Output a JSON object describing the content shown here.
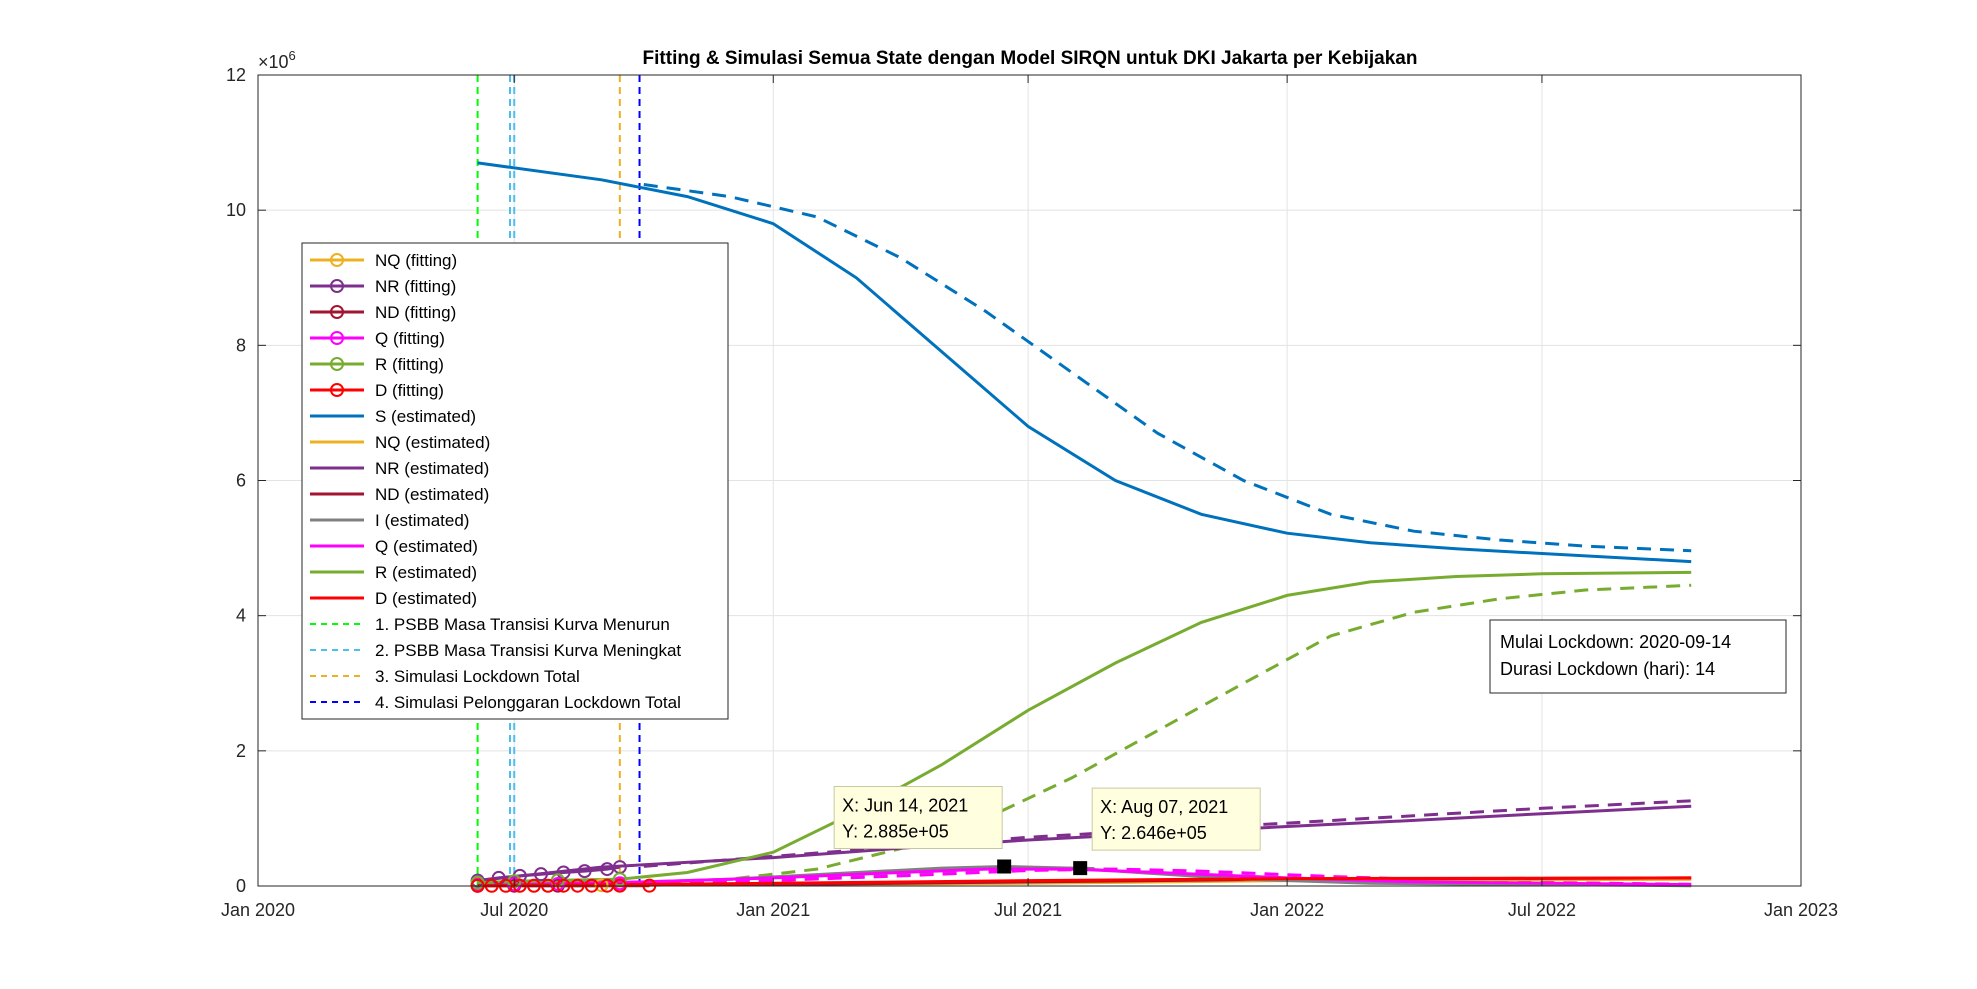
{
  "chart_data": {
    "type": "line",
    "title": "Fitting & Simulasi Semua State dengan Model SIRQN untuk DKI Jakarta per Kebijakan",
    "xlabel": "",
    "ylabel": "",
    "y_exponent_label": "×10",
    "y_exponent_power": "6",
    "xlim": [
      "2020-01-01",
      "2023-01-01"
    ],
    "ylim": [
      0,
      12000000
    ],
    "x_ticks": [
      {
        "date": "2020-01-01",
        "label": "Jan 2020"
      },
      {
        "date": "2020-07-01",
        "label": "Jul 2020"
      },
      {
        "date": "2021-01-01",
        "label": "Jan 2021"
      },
      {
        "date": "2021-07-01",
        "label": "Jul 2021"
      },
      {
        "date": "2022-01-01",
        "label": "Jan 2022"
      },
      {
        "date": "2022-07-01",
        "label": "Jul 2022"
      },
      {
        "date": "2023-01-01",
        "label": "Jan 2023"
      }
    ],
    "y_ticks": [
      {
        "value": 0,
        "label": "0"
      },
      {
        "value": 2000000,
        "label": "2"
      },
      {
        "value": 4000000,
        "label": "4"
      },
      {
        "value": 6000000,
        "label": "6"
      },
      {
        "value": 8000000,
        "label": "8"
      },
      {
        "value": 10000000,
        "label": "10"
      },
      {
        "value": 12000000,
        "label": "12"
      }
    ],
    "grid": true,
    "legend_position": "upper-left",
    "series": [
      {
        "name": "NQ (fitting)",
        "color": "#EDB120",
        "style": "solid",
        "marker": "circle",
        "x": [
          "2020-06-05",
          "2020-07-01",
          "2020-08-01",
          "2020-09-01",
          "2020-09-14"
        ],
        "y": [
          5000,
          8000,
          10000,
          12000,
          13000
        ]
      },
      {
        "name": "NR (fitting)",
        "color": "#7E2F8E",
        "style": "solid",
        "marker": "circle",
        "x": [
          "2020-06-05",
          "2020-06-20",
          "2020-07-05",
          "2020-07-20",
          "2020-08-05",
          "2020-08-20",
          "2020-09-05",
          "2020-09-14"
        ],
        "y": [
          80000,
          120000,
          150000,
          175000,
          200000,
          220000,
          250000,
          280000
        ]
      },
      {
        "name": "ND (fitting)",
        "color": "#A2142F",
        "style": "solid",
        "marker": "circle",
        "x": [
          "2020-06-05",
          "2020-07-01",
          "2020-08-01",
          "2020-09-14"
        ],
        "y": [
          3000,
          4000,
          5000,
          6000
        ]
      },
      {
        "name": "Q (fitting)",
        "color": "#FF00FF",
        "style": "solid",
        "marker": "circle",
        "x": [
          "2020-06-05",
          "2020-07-01",
          "2020-08-01",
          "2020-09-14"
        ],
        "y": [
          20000,
          25000,
          30000,
          40000
        ]
      },
      {
        "name": "R (fitting)",
        "color": "#77AC30",
        "style": "solid",
        "marker": "circle",
        "x": [
          "2020-06-05",
          "2020-07-01",
          "2020-08-01",
          "2020-09-14"
        ],
        "y": [
          50000,
          70000,
          85000,
          100000
        ]
      },
      {
        "name": "D (fitting)",
        "color": "#FF0000",
        "style": "solid",
        "marker": "circle",
        "x": [
          "2020-06-05",
          "2020-06-15",
          "2020-06-25",
          "2020-07-05",
          "2020-07-15",
          "2020-07-25",
          "2020-08-05",
          "2020-08-15",
          "2020-08-25",
          "2020-09-05",
          "2020-09-14",
          "2020-10-05"
        ],
        "y": [
          3000,
          3000,
          3000,
          3500,
          3500,
          3500,
          4000,
          4000,
          4000,
          4500,
          5000,
          5000
        ]
      },
      {
        "name": "S (estimated)",
        "color": "#0072BD",
        "style": "solid",
        "marker": "",
        "x": [
          "2020-06-05",
          "2020-09-01",
          "2020-11-01",
          "2021-01-01",
          "2021-03-01",
          "2021-05-01",
          "2021-07-01",
          "2021-09-01",
          "2021-11-01",
          "2022-01-01",
          "2022-03-01",
          "2022-05-01",
          "2022-07-01",
          "2022-09-01",
          "2022-10-15"
        ],
        "y": [
          10700000,
          10450000,
          10200000,
          9800000,
          9000000,
          7900000,
          6800000,
          6000000,
          5500000,
          5220000,
          5080000,
          4990000,
          4920000,
          4850000,
          4800000
        ]
      },
      {
        "name": "NQ (estimated)",
        "color": "#EDB120",
        "style": "solid",
        "marker": "",
        "x": [
          "2020-06-05",
          "2021-01-01",
          "2021-07-01",
          "2022-01-01",
          "2022-10-15"
        ],
        "y": [
          5000,
          20000,
          40000,
          80000,
          100000
        ]
      },
      {
        "name": "NR (estimated)",
        "color": "#7E2F8E",
        "style": "solid",
        "marker": "",
        "x": [
          "2020-06-05",
          "2020-09-01",
          "2021-01-01",
          "2021-04-01",
          "2021-07-01",
          "2021-10-01",
          "2022-01-01",
          "2022-04-01",
          "2022-07-01",
          "2022-10-15"
        ],
        "y": [
          80000,
          280000,
          420000,
          560000,
          680000,
          780000,
          880000,
          970000,
          1070000,
          1180000
        ]
      },
      {
        "name": "ND (estimated)",
        "color": "#A2142F",
        "style": "solid",
        "marker": "",
        "x": [
          "2020-06-05",
          "2021-01-01",
          "2021-07-01",
          "2022-01-01",
          "2022-10-15"
        ],
        "y": [
          3000,
          20000,
          60000,
          100000,
          120000
        ]
      },
      {
        "name": "I (estimated)",
        "color": "#808080",
        "style": "solid",
        "marker": "",
        "x": [
          "2020-06-05",
          "2020-09-01",
          "2020-12-01",
          "2021-03-01",
          "2021-05-01",
          "2021-06-14",
          "2021-08-01",
          "2021-10-01",
          "2021-12-01",
          "2022-03-01",
          "2022-10-15"
        ],
        "y": [
          10000,
          40000,
          100000,
          200000,
          265000,
          288500,
          264600,
          180000,
          100000,
          40000,
          5000
        ]
      },
      {
        "name": "Q (estimated)",
        "color": "#FF00FF",
        "style": "solid",
        "marker": "",
        "x": [
          "2020-06-05",
          "2020-10-01",
          "2021-01-01",
          "2021-04-01",
          "2021-06-01",
          "2021-08-01",
          "2021-10-01",
          "2022-01-01",
          "2022-04-01",
          "2022-10-15"
        ],
        "y": [
          20000,
          60000,
          120000,
          200000,
          250000,
          250000,
          200000,
          120000,
          60000,
          20000
        ]
      },
      {
        "name": "R (estimated)",
        "color": "#77AC30",
        "style": "solid",
        "marker": "",
        "x": [
          "2020-06-05",
          "2020-09-14",
          "2020-11-01",
          "2021-01-01",
          "2021-03-01",
          "2021-05-01",
          "2021-07-01",
          "2021-09-01",
          "2021-11-01",
          "2022-01-01",
          "2022-03-01",
          "2022-05-01",
          "2022-07-01",
          "2022-10-15"
        ],
        "y": [
          50000,
          100000,
          200000,
          500000,
          1100000,
          1800000,
          2600000,
          3300000,
          3900000,
          4300000,
          4500000,
          4580000,
          4620000,
          4640000
        ]
      },
      {
        "name": "D (estimated)",
        "color": "#FF0000",
        "style": "solid",
        "marker": "",
        "x": [
          "2020-06-05",
          "2021-01-01",
          "2021-07-01",
          "2022-01-01",
          "2022-10-15"
        ],
        "y": [
          3000,
          40000,
          80000,
          110000,
          120000
        ]
      }
    ],
    "simulation_series": [
      {
        "of": "S",
        "color": "#0072BD",
        "style": "dashed",
        "x": [
          "2020-10-01",
          "2020-12-01",
          "2021-02-01",
          "2021-04-01",
          "2021-06-01",
          "2021-08-01",
          "2021-10-01",
          "2021-12-01",
          "2022-02-01",
          "2022-04-01",
          "2022-06-01",
          "2022-08-01",
          "2022-10-15"
        ],
        "y": [
          10380000,
          10200000,
          9900000,
          9300000,
          8500000,
          7600000,
          6700000,
          6000000,
          5500000,
          5250000,
          5120000,
          5030000,
          4960000
        ]
      },
      {
        "of": "R",
        "color": "#77AC30",
        "style": "dashed",
        "x": [
          "2020-10-01",
          "2020-12-01",
          "2021-02-01",
          "2021-04-01",
          "2021-06-01",
          "2021-08-01",
          "2021-10-01",
          "2021-12-01",
          "2022-02-01",
          "2022-04-01",
          "2022-06-01",
          "2022-08-01",
          "2022-10-15"
        ],
        "y": [
          50000,
          100000,
          250000,
          550000,
          1000000,
          1600000,
          2300000,
          3000000,
          3700000,
          4050000,
          4250000,
          4380000,
          4450000
        ]
      },
      {
        "of": "NR",
        "color": "#7E2F8E",
        "style": "dashed",
        "x": [
          "2020-10-01",
          "2021-01-01",
          "2021-04-01",
          "2021-07-01",
          "2021-10-01",
          "2022-01-01",
          "2022-04-01",
          "2022-07-01",
          "2022-10-15"
        ],
        "y": [
          290000,
          440000,
          580000,
          720000,
          830000,
          930000,
          1040000,
          1150000,
          1260000
        ]
      },
      {
        "of": "I",
        "color": "#808080",
        "style": "dashed",
        "x": [
          "2020-10-01",
          "2021-01-01",
          "2021-04-01",
          "2021-06-01",
          "2021-08-07",
          "2021-10-01",
          "2021-12-01",
          "2022-03-01",
          "2022-10-15"
        ],
        "y": [
          30000,
          80000,
          170000,
          240000,
          264600,
          220000,
          150000,
          70000,
          10000
        ]
      },
      {
        "of": "Q",
        "color": "#FF00FF",
        "style": "dashed",
        "x": [
          "2020-10-01",
          "2021-01-01",
          "2021-04-01",
          "2021-07-01",
          "2021-09-01",
          "2021-11-01",
          "2022-02-01",
          "2022-06-01",
          "2022-10-15"
        ],
        "y": [
          30000,
          80000,
          150000,
          230000,
          250000,
          220000,
          140000,
          60000,
          25000
        ]
      }
    ],
    "vlines": [
      {
        "name": "1. PSBB Masa Transisi Kurva Menurun",
        "date": "2020-06-05",
        "color": "#00FF00"
      },
      {
        "name": "2. PSBB Masa Transisi Kurva Meningkat",
        "date": "2020-07-01",
        "color": "#4DBEEE"
      },
      {
        "name": "3. Simulasi Lockdown Total",
        "date": "2020-09-14",
        "color": "#EDB120"
      },
      {
        "name": "4. Simulasi Pelonggaran Lockdown Total",
        "date": "2020-09-28",
        "color": "#0000FF"
      }
    ],
    "extra_vline": {
      "date": "2020-06-28",
      "color": "#4DBEEE"
    },
    "datatips": [
      {
        "x_label": "X: Jun 14, 2021",
        "y_label": "Y: 2.885e+05",
        "date": "2021-06-14",
        "value": 288500,
        "box_anchor": "upper-left"
      },
      {
        "x_label": "X: Aug 07, 2021",
        "y_label": "Y: 2.646e+05",
        "date": "2021-08-07",
        "value": 264600,
        "box_anchor": "upper-left"
      }
    ],
    "annotation": {
      "line1": "Mulai Lockdown: 2020-09-14",
      "line2": "Durasi Lockdown (hari): 14",
      "position": "right-middle"
    }
  }
}
